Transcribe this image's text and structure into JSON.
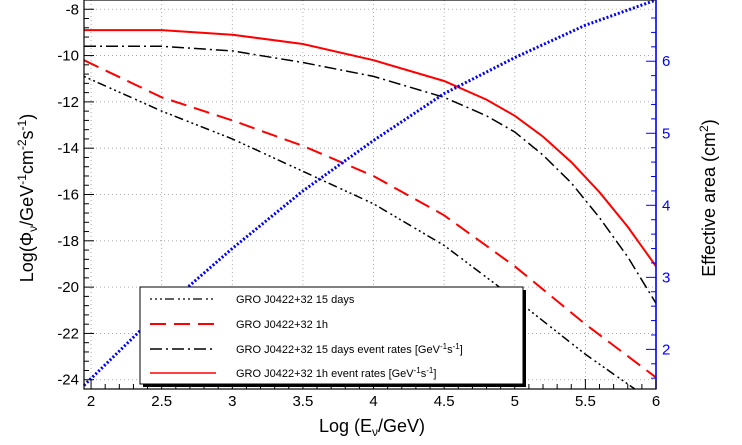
{
  "chart_data": {
    "type": "line",
    "xlabel_main": "Log (E",
    "xlabel_sub": "ν",
    "xlabel_tail": "/GeV)",
    "ylabel_text": "Log(Φ_ν/GeV⁻¹cm⁻²s⁻¹)",
    "ylabel_parts": [
      "Log(Φ",
      "ν",
      "/GeV",
      "-1",
      "cm",
      "-2",
      "s",
      "-1",
      ")"
    ],
    "y2label_text": "Effective area (cm²)",
    "y2label_parts": [
      "Effective area (cm",
      "2",
      ")"
    ],
    "xlim": [
      1.95,
      6.0
    ],
    "ylim": [
      -24.4,
      -7.6
    ],
    "y2lim": [
      1.45,
      6.85
    ],
    "xticks": [
      2,
      2.5,
      3,
      3.5,
      4,
      4.5,
      5,
      5.5,
      6
    ],
    "xtick_labels": [
      "2",
      "2.5",
      "3",
      "3.5",
      "4",
      "4.5",
      "5",
      "5.5",
      "6"
    ],
    "yticks": [
      -8,
      -10,
      -12,
      -14,
      -16,
      -18,
      -20,
      -22,
      -24
    ],
    "ytick_labels": [
      "-8",
      "-10",
      "-12",
      "-14",
      "-16",
      "-18",
      "-20",
      "-22",
      "-24"
    ],
    "y2ticks": [
      2,
      3,
      4,
      5,
      6
    ],
    "y2tick_labels": [
      "2",
      "3",
      "4",
      "5",
      "6"
    ],
    "grid": true,
    "legend_position": "bottom-left",
    "colors": {
      "black": "#000000",
      "red": "#ff0000",
      "blue": "#0000ff"
    },
    "series": [
      {
        "name": "GRO J0422+32 15 days",
        "axis": "left",
        "color": "#000000",
        "dash": "2 3 2 3 2 3 9 4",
        "x": [
          1.95,
          2.5,
          3.0,
          3.5,
          4.0,
          4.5,
          5.0,
          5.5,
          5.85
        ],
        "y": [
          -10.9,
          -12.4,
          -13.6,
          -15.0,
          -16.4,
          -18.2,
          -20.5,
          -22.9,
          -24.4
        ]
      },
      {
        "name": "GRO J0422+32 1h",
        "axis": "left",
        "color": "#ff0000",
        "dash": "16 8",
        "x": [
          1.95,
          2.5,
          3.0,
          3.5,
          4.0,
          4.5,
          5.0,
          5.5,
          6.0
        ],
        "y": [
          -10.2,
          -11.8,
          -12.8,
          -13.9,
          -15.2,
          -16.9,
          -19.1,
          -21.6,
          -23.9
        ]
      },
      {
        "name": "GRO J0422+32 15 days event rates [GeV⁻¹s⁻¹]",
        "name_parts": [
          "GRO J0422+32 15 days event rates [GeV",
          "-1",
          "s",
          "-1",
          "]"
        ],
        "axis": "left",
        "color": "#000000",
        "dash": "12 4 2 4",
        "x": [
          1.95,
          2.5,
          3.0,
          3.5,
          4.0,
          4.5,
          4.8,
          5.0,
          5.2,
          5.4,
          5.6,
          5.8,
          6.0
        ],
        "y": [
          -9.6,
          -9.6,
          -9.8,
          -10.3,
          -10.9,
          -11.8,
          -12.6,
          -13.3,
          -14.3,
          -15.5,
          -17.0,
          -18.7,
          -20.7
        ]
      },
      {
        "name": "GRO J0422+32 1h event rates [GeV⁻¹s⁻¹]",
        "name_parts": [
          "GRO J0422+32 1h event rates [GeV",
          "-1",
          "s",
          "-1",
          "]"
        ],
        "axis": "left",
        "color": "#ff0000",
        "dash": "",
        "x": [
          1.95,
          2.5,
          3.0,
          3.5,
          4.0,
          4.5,
          4.8,
          5.0,
          5.2,
          5.4,
          5.6,
          5.8,
          6.0
        ],
        "y": [
          -8.9,
          -8.9,
          -9.1,
          -9.5,
          -10.2,
          -11.1,
          -11.9,
          -12.6,
          -13.5,
          -14.6,
          -15.9,
          -17.4,
          -19.1
        ]
      },
      {
        "name": "",
        "axis": "right",
        "color": "#0000ff",
        "dash": "2 2",
        "x": [
          1.95,
          2.5,
          3.0,
          3.5,
          4.0,
          4.5,
          5.0,
          5.5,
          6.0
        ],
        "y": [
          1.5,
          2.55,
          3.4,
          4.2,
          4.9,
          5.55,
          6.05,
          6.5,
          6.85
        ]
      }
    ]
  }
}
